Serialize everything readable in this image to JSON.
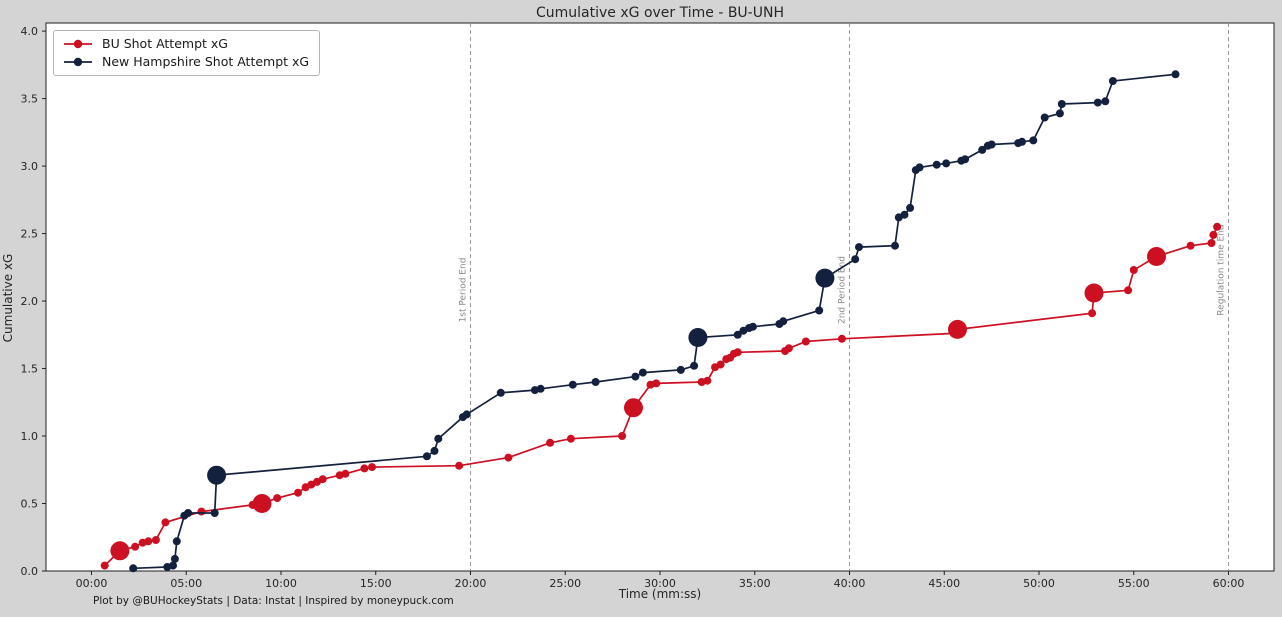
{
  "colors": {
    "background": "#d4d4d4",
    "plot_background": "#ffffff",
    "axis_spine": "#1f1f1f",
    "tick_label": "#262626",
    "bu_red": "#cc1022",
    "unh_navy": "#14213e",
    "divider_line": "#9a9a9a",
    "divider_label": "#8a8a8a"
  },
  "footer": "Plot by @BUHockeyStats | Data: Instat | Inspired by moneypuck.com",
  "chart_data": {
    "type": "line",
    "title": "Cumulative xG over Time - BU-UNH",
    "xlabel": "Time (mm:ss)",
    "ylabel": "Cumulative xG",
    "grid": false,
    "legend_position": "upper left",
    "xlim_minutes": [
      -2.4,
      62.4
    ],
    "ylim": [
      0,
      4.06
    ],
    "x_ticks": [
      {
        "minute": 0,
        "label": "00:00"
      },
      {
        "minute": 5,
        "label": "05:00"
      },
      {
        "minute": 10,
        "label": "10:00"
      },
      {
        "minute": 15,
        "label": "15:00"
      },
      {
        "minute": 20,
        "label": "20:00"
      },
      {
        "minute": 25,
        "label": "25:00"
      },
      {
        "minute": 30,
        "label": "30:00"
      },
      {
        "minute": 35,
        "label": "35:00"
      },
      {
        "minute": 40,
        "label": "40:00"
      },
      {
        "minute": 45,
        "label": "45:00"
      },
      {
        "minute": 50,
        "label": "50:00"
      },
      {
        "minute": 55,
        "label": "55:00"
      },
      {
        "minute": 60,
        "label": "60:00"
      }
    ],
    "y_ticks": [
      {
        "value": 0.0,
        "label": "0.0"
      },
      {
        "value": 0.5,
        "label": "0.5"
      },
      {
        "value": 1.0,
        "label": "1.0"
      },
      {
        "value": 1.5,
        "label": "1.5"
      },
      {
        "value": 2.0,
        "label": "2.0"
      },
      {
        "value": 2.5,
        "label": "2.5"
      },
      {
        "value": 3.0,
        "label": "3.0"
      },
      {
        "value": 3.5,
        "label": "3.5"
      },
      {
        "value": 4.0,
        "label": "4.0"
      }
    ],
    "vlines": [
      {
        "minute": 20,
        "label": "1st Period End"
      },
      {
        "minute": 40,
        "label": "2nd Period End"
      },
      {
        "minute": 60,
        "label": "Regulation time End"
      }
    ],
    "series": [
      {
        "name": "BU Shot Attempt xG",
        "color": "#cc1022",
        "points_format": "[minute, cumulative_xG, large_marker]",
        "points": [
          [
            0.7,
            0.04,
            0
          ],
          [
            1.5,
            0.15,
            1
          ],
          [
            2.3,
            0.18,
            0
          ],
          [
            2.7,
            0.21,
            0
          ],
          [
            3.0,
            0.22,
            0
          ],
          [
            3.4,
            0.23,
            0
          ],
          [
            3.9,
            0.36,
            0
          ],
          [
            5.8,
            0.44,
            0
          ],
          [
            8.5,
            0.49,
            0
          ],
          [
            9.0,
            0.5,
            1
          ],
          [
            9.8,
            0.54,
            0
          ],
          [
            10.9,
            0.58,
            0
          ],
          [
            11.3,
            0.62,
            0
          ],
          [
            11.6,
            0.64,
            0
          ],
          [
            11.9,
            0.66,
            0
          ],
          [
            12.2,
            0.68,
            0
          ],
          [
            13.1,
            0.71,
            0
          ],
          [
            13.4,
            0.72,
            0
          ],
          [
            14.4,
            0.76,
            0
          ],
          [
            14.8,
            0.77,
            0
          ],
          [
            19.4,
            0.78,
            0
          ],
          [
            22.0,
            0.84,
            0
          ],
          [
            24.2,
            0.95,
            0
          ],
          [
            25.3,
            0.98,
            0
          ],
          [
            28.0,
            1.0,
            0
          ],
          [
            28.6,
            1.21,
            1
          ],
          [
            29.5,
            1.38,
            0
          ],
          [
            29.8,
            1.39,
            0
          ],
          [
            32.2,
            1.4,
            0
          ],
          [
            32.5,
            1.41,
            0
          ],
          [
            32.9,
            1.51,
            0
          ],
          [
            33.2,
            1.53,
            0
          ],
          [
            33.5,
            1.57,
            0
          ],
          [
            33.7,
            1.58,
            0
          ],
          [
            33.9,
            1.61,
            0
          ],
          [
            34.1,
            1.62,
            0
          ],
          [
            36.6,
            1.63,
            0
          ],
          [
            36.8,
            1.65,
            0
          ],
          [
            37.7,
            1.7,
            0
          ],
          [
            39.6,
            1.72,
            0
          ],
          [
            45.5,
            1.76,
            0
          ],
          [
            45.7,
            1.79,
            1
          ],
          [
            52.8,
            1.91,
            0
          ],
          [
            52.9,
            2.06,
            1
          ],
          [
            54.7,
            2.08,
            0
          ],
          [
            55.0,
            2.23,
            0
          ],
          [
            56.2,
            2.33,
            1
          ],
          [
            58.0,
            2.41,
            0
          ],
          [
            59.1,
            2.43,
            0
          ],
          [
            59.2,
            2.49,
            0
          ],
          [
            59.4,
            2.55,
            0
          ]
        ]
      },
      {
        "name": "New Hampshire Shot Attempt xG",
        "color": "#14213e",
        "points_format": "[minute, cumulative_xG, large_marker]",
        "points": [
          [
            2.2,
            0.02,
            0
          ],
          [
            4.0,
            0.03,
            0
          ],
          [
            4.3,
            0.04,
            0
          ],
          [
            4.4,
            0.09,
            0
          ],
          [
            4.5,
            0.22,
            0
          ],
          [
            4.9,
            0.41,
            0
          ],
          [
            5.1,
            0.43,
            0
          ],
          [
            6.5,
            0.43,
            0
          ],
          [
            6.6,
            0.71,
            1
          ],
          [
            17.7,
            0.85,
            0
          ],
          [
            18.1,
            0.89,
            0
          ],
          [
            18.3,
            0.98,
            0
          ],
          [
            19.6,
            1.14,
            0
          ],
          [
            19.8,
            1.16,
            0
          ],
          [
            21.6,
            1.32,
            0
          ],
          [
            23.4,
            1.34,
            0
          ],
          [
            23.7,
            1.35,
            0
          ],
          [
            25.4,
            1.38,
            0
          ],
          [
            26.6,
            1.4,
            0
          ],
          [
            28.7,
            1.44,
            0
          ],
          [
            29.1,
            1.47,
            0
          ],
          [
            31.1,
            1.49,
            0
          ],
          [
            31.8,
            1.52,
            0
          ],
          [
            32.0,
            1.73,
            1
          ],
          [
            34.1,
            1.75,
            0
          ],
          [
            34.4,
            1.78,
            0
          ],
          [
            34.7,
            1.8,
            0
          ],
          [
            34.9,
            1.81,
            0
          ],
          [
            36.3,
            1.83,
            0
          ],
          [
            36.5,
            1.85,
            0
          ],
          [
            38.4,
            1.93,
            0
          ],
          [
            38.7,
            2.17,
            1
          ],
          [
            40.3,
            2.31,
            0
          ],
          [
            40.5,
            2.4,
            0
          ],
          [
            42.4,
            2.41,
            0
          ],
          [
            42.6,
            2.62,
            0
          ],
          [
            42.9,
            2.64,
            0
          ],
          [
            43.2,
            2.69,
            0
          ],
          [
            43.5,
            2.97,
            0
          ],
          [
            43.7,
            2.99,
            0
          ],
          [
            44.6,
            3.01,
            0
          ],
          [
            45.1,
            3.02,
            0
          ],
          [
            45.9,
            3.04,
            0
          ],
          [
            46.1,
            3.05,
            0
          ],
          [
            47.0,
            3.12,
            0
          ],
          [
            47.3,
            3.15,
            0
          ],
          [
            47.5,
            3.16,
            0
          ],
          [
            48.9,
            3.17,
            0
          ],
          [
            49.1,
            3.18,
            0
          ],
          [
            49.7,
            3.19,
            0
          ],
          [
            50.3,
            3.36,
            0
          ],
          [
            51.1,
            3.39,
            0
          ],
          [
            51.2,
            3.46,
            0
          ],
          [
            53.1,
            3.47,
            0
          ],
          [
            53.5,
            3.48,
            0
          ],
          [
            53.9,
            3.63,
            0
          ],
          [
            57.2,
            3.68,
            0
          ]
        ]
      }
    ]
  }
}
